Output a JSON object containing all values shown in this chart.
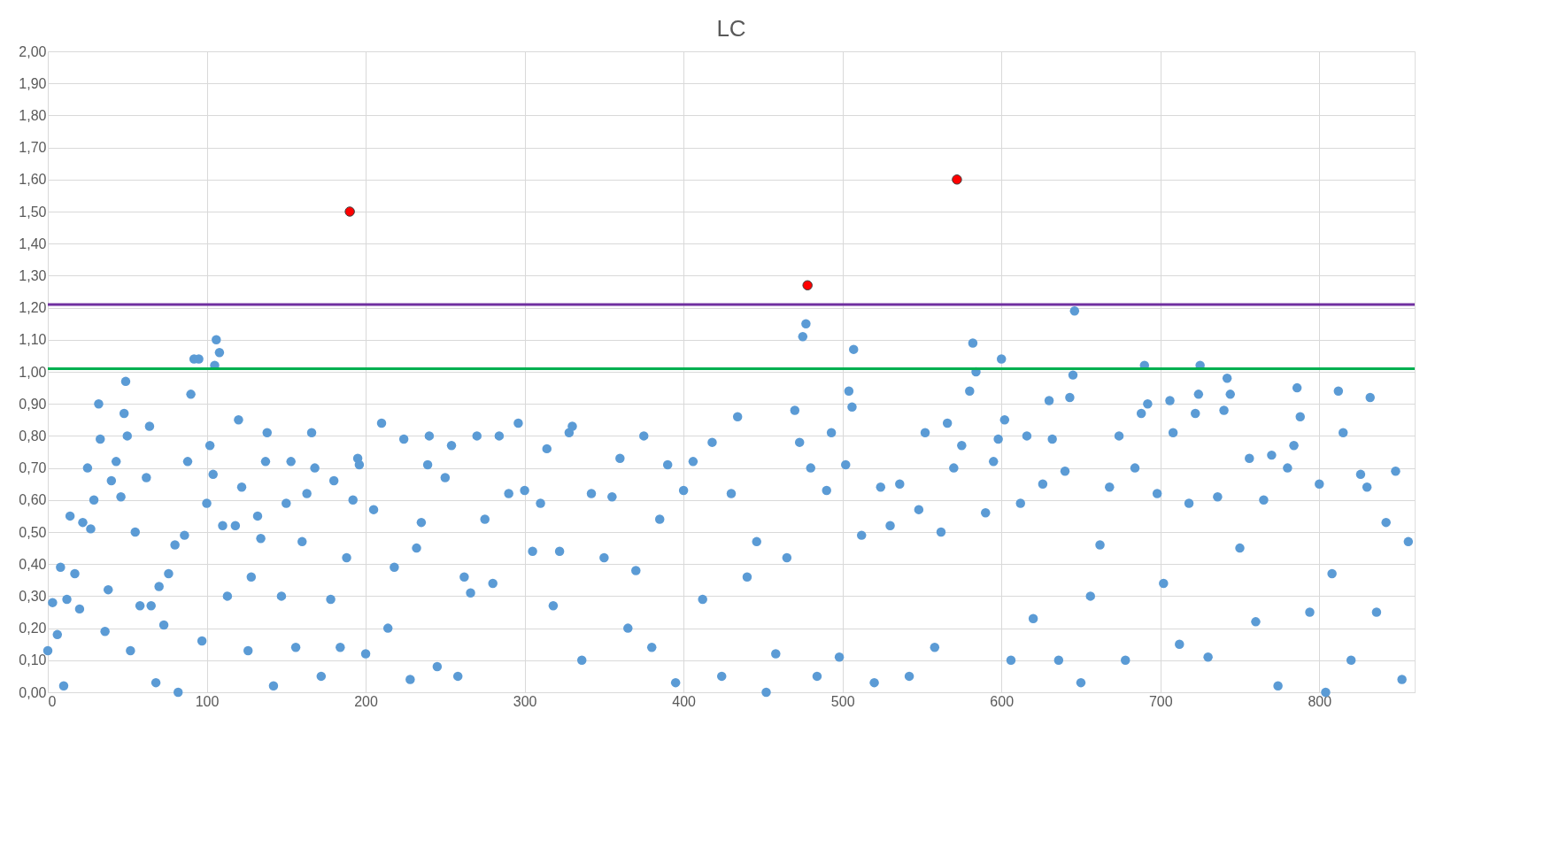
{
  "chart_data": {
    "type": "scatter",
    "title": "LC",
    "xlim": [
      0,
      860
    ],
    "xticks": [
      0,
      100,
      200,
      300,
      400,
      500,
      600,
      700,
      800
    ],
    "ylim": [
      0,
      2
    ],
    "yticks": [
      {
        "value": 0,
        "label": "0,00"
      },
      {
        "value": 0.1,
        "label": "0,10"
      },
      {
        "value": 0.2,
        "label": "0,20"
      },
      {
        "value": 0.3,
        "label": "0,30"
      },
      {
        "value": 0.4,
        "label": "0,40"
      },
      {
        "value": 0.5,
        "label": "0,50"
      },
      {
        "value": 0.6,
        "label": "0,60"
      },
      {
        "value": 0.7,
        "label": "0,70"
      },
      {
        "value": 0.8,
        "label": "0,80"
      },
      {
        "value": 0.9,
        "label": "0,90"
      },
      {
        "value": 1.0,
        "label": "1,00"
      },
      {
        "value": 1.1,
        "label": "1,10"
      },
      {
        "value": 1.2,
        "label": "1,20"
      },
      {
        "value": 1.3,
        "label": "1,30"
      },
      {
        "value": 1.4,
        "label": "1,40"
      },
      {
        "value": 1.5,
        "label": "1,50"
      },
      {
        "value": 1.6,
        "label": "1,60"
      },
      {
        "value": 1.7,
        "label": "1,70"
      },
      {
        "value": 1.8,
        "label": "1,80"
      },
      {
        "value": 1.9,
        "label": "1,90"
      },
      {
        "value": 2.0,
        "label": "2,00"
      }
    ],
    "grid": true,
    "marker": "circle",
    "series": [
      {
        "color": "#5b9bd5",
        "x": [
          0,
          3,
          6,
          8,
          10,
          12,
          14,
          17,
          20,
          22,
          25,
          27,
          29,
          32,
          33,
          36,
          38,
          40,
          43,
          46,
          48,
          49,
          50,
          52,
          55,
          58,
          62,
          64,
          65,
          68,
          70,
          73,
          76,
          80,
          82,
          86,
          88,
          90,
          92,
          95,
          97,
          100,
          102,
          104,
          105,
          106,
          108,
          110,
          113,
          118,
          120,
          122,
          126,
          128,
          132,
          134,
          137,
          138,
          142,
          147,
          150,
          153,
          156,
          160,
          163,
          166,
          168,
          172,
          178,
          180,
          184,
          188,
          192,
          195,
          196,
          200,
          205,
          210,
          214,
          218,
          224,
          228,
          232,
          235,
          239,
          240,
          245,
          250,
          254,
          258,
          262,
          266,
          270,
          275,
          280,
          284,
          290,
          296,
          300,
          305,
          310,
          314,
          318,
          322,
          328,
          330,
          336,
          342,
          350,
          355,
          360,
          365,
          370,
          375,
          380,
          385,
          390,
          395,
          400,
          406,
          412,
          418,
          424,
          430,
          434,
          440,
          446,
          452,
          458,
          465,
          470,
          473,
          475,
          477,
          480,
          484,
          490,
          493,
          498,
          502,
          504,
          506,
          507,
          512,
          520,
          524,
          530,
          536,
          542,
          548,
          552,
          558,
          562,
          566,
          570,
          575,
          580,
          582,
          584,
          590,
          595,
          598,
          600,
          602,
          606,
          612,
          616,
          620,
          626,
          630,
          632,
          636,
          640,
          643,
          645,
          646,
          650,
          656,
          662,
          668,
          674,
          678,
          684,
          688,
          690,
          692,
          698,
          702,
          706,
          708,
          712,
          718,
          722,
          724,
          725,
          730,
          736,
          740,
          742,
          744,
          750,
          756,
          760,
          765,
          770,
          774,
          780,
          784,
          786,
          788,
          794,
          800,
          804,
          808,
          812,
          815,
          820,
          826,
          830,
          832,
          836,
          842,
          848,
          852,
          856
        ],
        "values": [
          0.13,
          0.28,
          0.18,
          0.39,
          0.02,
          0.29,
          0.55,
          0.37,
          0.26,
          0.53,
          0.7,
          0.51,
          0.6,
          0.9,
          0.79,
          0.19,
          0.32,
          0.66,
          0.72,
          0.61,
          0.87,
          0.97,
          0.8,
          0.13,
          0.5,
          0.27,
          0.67,
          0.83,
          0.27,
          0.03,
          0.33,
          0.21,
          0.37,
          0.46,
          0.0,
          0.49,
          0.72,
          0.93,
          1.04,
          1.04,
          0.16,
          0.59,
          0.77,
          0.68,
          1.02,
          1.1,
          1.06,
          0.52,
          0.3,
          0.52,
          0.85,
          0.64,
          0.13,
          0.36,
          0.55,
          0.48,
          0.72,
          0.81,
          0.02,
          0.3,
          0.59,
          0.72,
          0.14,
          0.47,
          0.62,
          0.81,
          0.7,
          0.05,
          0.29,
          0.66,
          0.14,
          0.42,
          0.6,
          0.73,
          0.71,
          0.12,
          0.57,
          0.84,
          0.2,
          0.39,
          0.79,
          0.04,
          0.45,
          0.53,
          0.71,
          0.8,
          0.08,
          0.67,
          0.77,
          0.05,
          0.36,
          0.31,
          0.8,
          0.54,
          0.34,
          0.8,
          0.62,
          0.84,
          0.63,
          0.44,
          0.59,
          0.76,
          0.27,
          0.44,
          0.81,
          0.83,
          0.1,
          0.62,
          0.42,
          0.61,
          0.73,
          0.2,
          0.38,
          0.8,
          0.14,
          0.54,
          0.71,
          0.03,
          0.63,
          0.72,
          0.29,
          0.78,
          0.05,
          0.62,
          0.86,
          0.36,
          0.47,
          0.0,
          0.12,
          0.42,
          0.88,
          0.78,
          1.11,
          1.15,
          0.7,
          0.05,
          0.63,
          0.81,
          0.11,
          0.71,
          0.94,
          0.89,
          1.07,
          0.49,
          0.03,
          0.64,
          0.52,
          0.65,
          0.05,
          0.57,
          0.81,
          0.14,
          0.5,
          0.84,
          0.7,
          0.77,
          0.94,
          1.09,
          1.0,
          0.56,
          0.72,
          0.79,
          1.04,
          0.85,
          0.1,
          0.59,
          0.8,
          0.23,
          0.65,
          0.91,
          0.79,
          0.1,
          0.69,
          0.92,
          0.99,
          1.19,
          0.03,
          0.3,
          0.46,
          0.64,
          0.8,
          0.1,
          0.7,
          0.87,
          1.02,
          0.9,
          0.62,
          0.34,
          0.91,
          0.81,
          0.15,
          0.59,
          0.87,
          0.93,
          1.02,
          0.11,
          0.61,
          0.88,
          0.98,
          0.93,
          0.45,
          0.73,
          0.22,
          0.6,
          0.74,
          0.02,
          0.7,
          0.77,
          0.95,
          0.86,
          0.25,
          0.65,
          0.0,
          0.37,
          0.94,
          0.81,
          0.1,
          0.68,
          0.64,
          0.92,
          0.25,
          0.53,
          0.69,
          0.04,
          0.47
        ]
      },
      {
        "color": "#ff0000",
        "x": [
          190,
          478,
          572
        ],
        "values": [
          1.5,
          1.27,
          1.6
        ]
      }
    ],
    "ref_lines": [
      {
        "axis": "y",
        "value": 1.21,
        "color": "#7030a0"
      },
      {
        "axis": "y",
        "value": 1.01,
        "color": "#00b050"
      }
    ]
  }
}
